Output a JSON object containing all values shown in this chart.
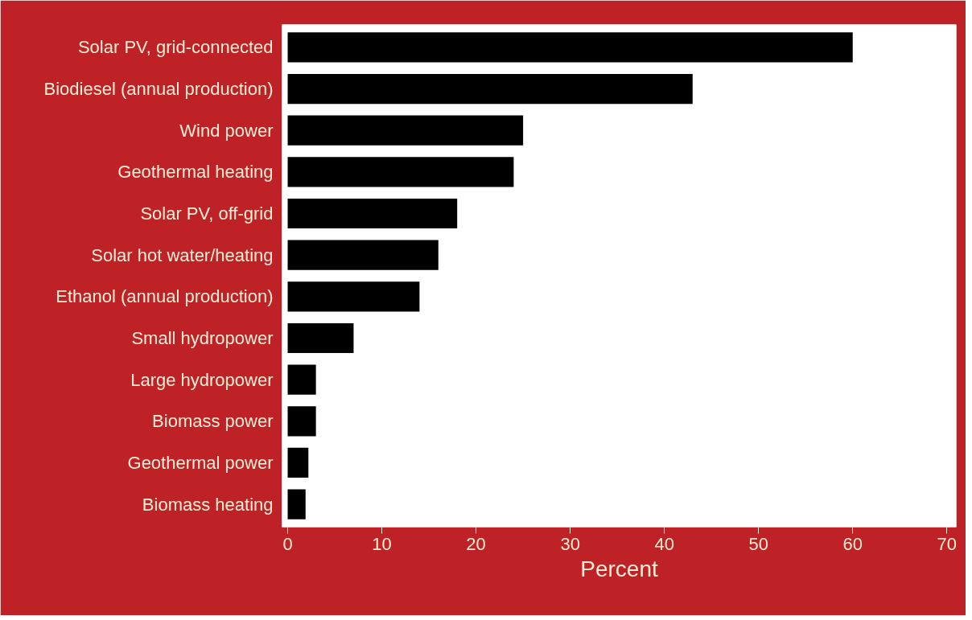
{
  "chart_data": {
    "type": "bar",
    "orientation": "horizontal",
    "xlabel": "Percent",
    "categories": [
      "Solar PV, grid-connected",
      "Biodiesel (annual production)",
      "Wind power",
      "Geothermal heating",
      "Solar PV, off-grid",
      "Solar hot water/heating",
      "Ethanol (annual production)",
      "Small hydropower",
      "Large hydropower",
      "Biomass power",
      "Geothermal power",
      "Biomass heating"
    ],
    "values": [
      60,
      43,
      25,
      24,
      18,
      16,
      14,
      7,
      3,
      3,
      2.2,
      1.9
    ],
    "color": "#000000",
    "xlim": [
      -0.6,
      71
    ],
    "xticks": [
      0,
      10,
      20,
      30,
      40,
      50,
      60,
      70
    ],
    "grid": false
  }
}
